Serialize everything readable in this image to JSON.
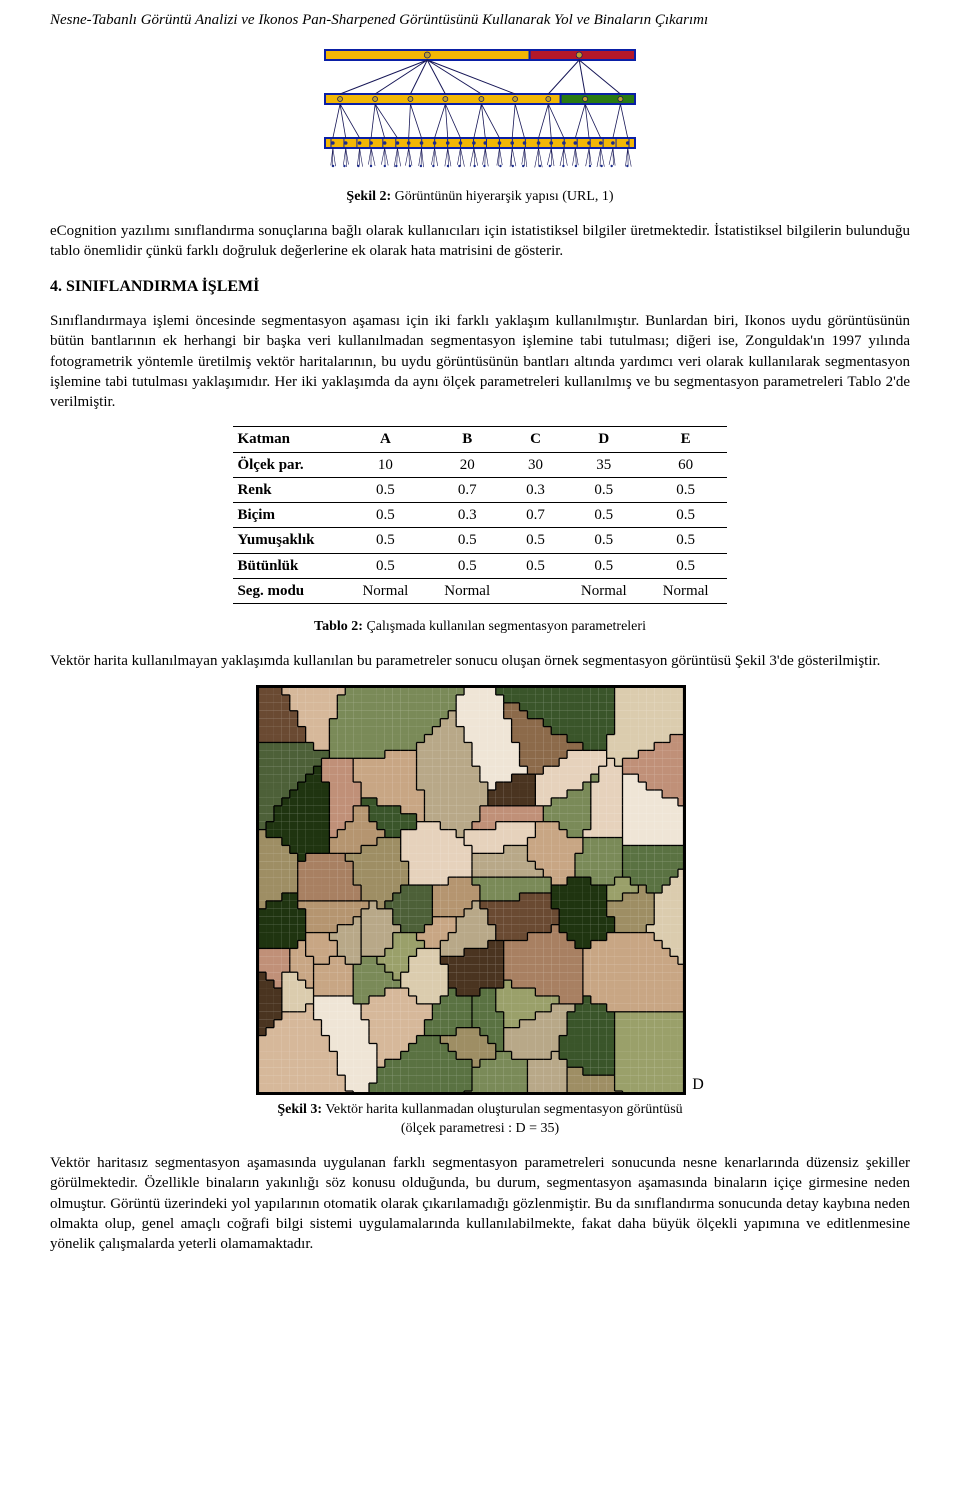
{
  "header": {
    "title": "Nesne-Tabanlı Görüntü Analizi ve Ikonos Pan-Sharpened Görüntüsünü Kullanarak Yol ve Binaların Çıkarımı"
  },
  "figure2": {
    "caption_bold": "Şekil 2:",
    "caption_rest": " Görüntünün hiyerarşik yapısı (URL, 1)",
    "top_bar": {
      "outline": "#0a1fa6",
      "fill_left": "#f2b705",
      "fill_right": "#b3182a",
      "split": 0.66
    },
    "mid_bar": {
      "outline": "#0a1fa6",
      "fill_left": "#f2b705",
      "fill_right": "#2a7a12",
      "split": 0.76
    },
    "bot_bar": {
      "outline": "#0a1fa6",
      "fill": "#f2b705",
      "tick_color": "#0a1fa6"
    },
    "bg": "#ffffff",
    "connector_color": "#161657",
    "node_fill": "#c0a030",
    "bottom_node_fill": "#1a2b8c",
    "jitter_seed": 11
  },
  "paragraphs": {
    "p1": "eCognition yazılımı sınıflandırma sonuçlarına bağlı olarak kullanıcıları için istatistiksel bilgiler üretmektedir. İstatistiksel bilgilerin bulunduğu tablo önemlidir çünkü farklı doğruluk değerlerine ek olarak hata matrisini de gösterir.",
    "section_title": "4.   SINIFLANDIRMA İŞLEMİ",
    "p2": "Sınıflandırmaya işlemi öncesinde segmentasyon aşaması için iki farklı yaklaşım kullanılmıştır. Bunlardan biri, Ikonos uydu görüntüsünün bütün bantlarının ek herhangi bir başka veri kullanılmadan segmentasyon işlemine tabi tutulması; diğeri ise, Zonguldak'ın 1997 yılında fotogrametrik yöntemle üretilmiş vektör haritalarının, bu uydu görüntüsünün bantları altında yardımcı veri olarak kullanılarak segmentasyon işlemine tabi tutulması yaklaşımıdır. Her iki yaklaşımda da aynı ölçek parametreleri kullanılmış ve bu segmentasyon parametreleri Tablo 2'de verilmiştir.",
    "p3": "Vektör harita kullanılmayan yaklaşımda kullanılan bu parametreler sonucu oluşan örnek segmentasyon görüntüsü Şekil 3'de gösterilmiştir.",
    "p4": "Vektör haritasız segmentasyon aşamasında uygulanan farklı segmentasyon parametreleri sonucunda nesne kenarlarında düzensiz şekiller görülmektedir. Özellikle binaların yakınlığı söz konusu olduğunda, bu durum, segmentasyon aşamasında binaların içiçe girmesine neden olmuştur. Görüntü üzerindeki yol yapılarının otomatik olarak çıkarılamadığı gözlenmiştir. Bu da sınıflandırma sonucunda detay kaybına neden olmakta olup, genel amaçlı coğrafi bilgi sistemi uygulamalarında kullanılabilmekte, fakat daha büyük ölçekli yapımına ve editlenmesine yönelik çalışmalarda yeterli olamamaktadır."
  },
  "table2": {
    "columns": [
      "Katman",
      "A",
      "B",
      "C",
      "D",
      "E"
    ],
    "rows": [
      [
        "Ölçek par.",
        "10",
        "20",
        "30",
        "35",
        "60"
      ],
      [
        "Renk",
        "0.5",
        "0.7",
        "0.3",
        "0.5",
        "0.5"
      ],
      [
        "Biçim",
        "0.5",
        "0.3",
        "0.7",
        "0.5",
        "0.5"
      ],
      [
        "Yumuşaklık",
        "0.5",
        "0.5",
        "0.5",
        "0.5",
        "0.5"
      ],
      [
        "Bütünlük",
        "0.5",
        "0.5",
        "0.5",
        "0.5",
        "0.5"
      ],
      [
        "Seg. modu",
        "Normal",
        "Normal",
        "",
        "Normal",
        "Normal"
      ]
    ],
    "caption_bold": "Tablo 2:",
    "caption_rest": " Çalışmada kullanılan segmentasyon parametreleri"
  },
  "figure3": {
    "d_label": "D",
    "caption_bold": "Şekil 3:",
    "caption_line1": " Vektör harita kullanmadan oluşturulan segmentasyon görüntüsü",
    "caption_line2": "(ölçek parametresi : D = 35)",
    "palette": [
      "#1f3410",
      "#3a552a",
      "#5a7242",
      "#7a8a58",
      "#9aa06a",
      "#b59570",
      "#c8a684",
      "#d6b89a",
      "#e6d2bc",
      "#efe5d6",
      "#8c6a4a",
      "#6a4a32",
      "#4a3420",
      "#a88062",
      "#c09078",
      "#7e6e4a",
      "#9e8e64",
      "#b8a888",
      "#dbccae",
      "#4d6038"
    ],
    "outline": "#000000",
    "seed": 42,
    "voronoi_sites": 70
  }
}
